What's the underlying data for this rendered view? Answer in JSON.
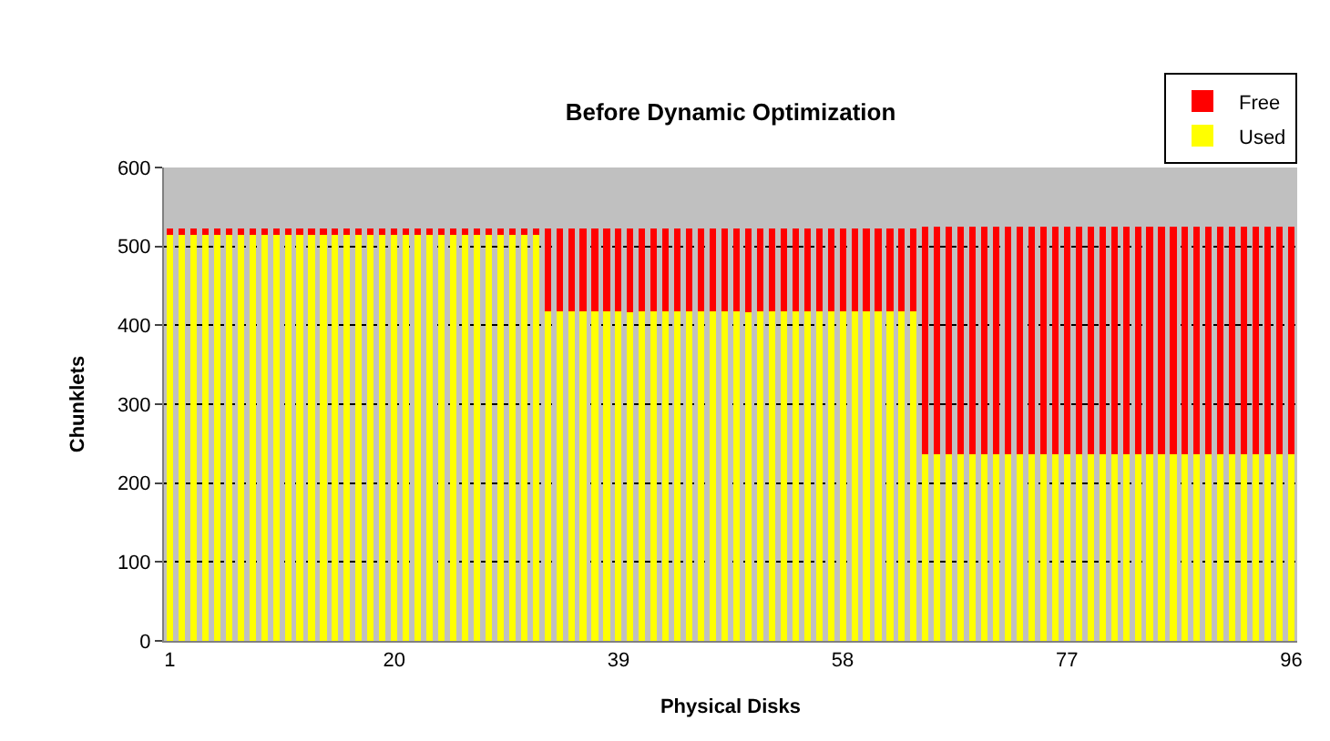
{
  "chart_data": {
    "type": "bar",
    "title": "Before Dynamic Optimization",
    "xlabel": "Physical Disks",
    "ylabel": "Chunklets",
    "categories": [
      "1",
      null,
      null,
      null,
      null,
      null,
      null,
      null,
      null,
      null,
      null,
      null,
      null,
      null,
      null,
      null,
      null,
      null,
      null,
      "20",
      null,
      null,
      null,
      null,
      null,
      null,
      null,
      null,
      null,
      null,
      null,
      null,
      null,
      null,
      null,
      null,
      null,
      null,
      "39",
      null,
      null,
      null,
      null,
      null,
      null,
      null,
      null,
      null,
      null,
      null,
      null,
      null,
      null,
      null,
      null,
      null,
      null,
      "58",
      null,
      null,
      null,
      null,
      null,
      null,
      null,
      null,
      null,
      null,
      null,
      null,
      null,
      null,
      null,
      null,
      null,
      null,
      "77",
      null,
      null,
      null,
      null,
      null,
      null,
      null,
      null,
      null,
      null,
      null,
      null,
      null,
      null,
      null,
      null,
      null,
      null,
      "96"
    ],
    "series": [
      {
        "name": "Used",
        "color": "#ffff00",
        "values": [
          515,
          515,
          515,
          515,
          515,
          515,
          515,
          515,
          515,
          515,
          515,
          515,
          515,
          515,
          515,
          515,
          515,
          515,
          515,
          515,
          515,
          515,
          515,
          515,
          515,
          515,
          515,
          515,
          515,
          515,
          515,
          515,
          418,
          418,
          418,
          418,
          418,
          418,
          418,
          416,
          418,
          418,
          418,
          418,
          418,
          418,
          418,
          418,
          418,
          416,
          418,
          418,
          418,
          418,
          418,
          418,
          418,
          418,
          418,
          418,
          418,
          418,
          418,
          418,
          237,
          237,
          237,
          237,
          237,
          237,
          237,
          237,
          237,
          237,
          237,
          237,
          237,
          237,
          237,
          237,
          237,
          237,
          237,
          237,
          237,
          237,
          237,
          237,
          237,
          237,
          237,
          237,
          237,
          237,
          237,
          237
        ]
      },
      {
        "name": "Free",
        "color": "#ff0000",
        "values": [
          8,
          8,
          8,
          8,
          8,
          8,
          8,
          8,
          8,
          8,
          8,
          8,
          8,
          8,
          8,
          8,
          8,
          8,
          8,
          8,
          8,
          8,
          8,
          8,
          8,
          8,
          8,
          8,
          8,
          8,
          8,
          8,
          105,
          105,
          105,
          105,
          105,
          105,
          105,
          107,
          105,
          105,
          105,
          105,
          105,
          105,
          105,
          105,
          105,
          107,
          105,
          105,
          105,
          105,
          105,
          105,
          105,
          105,
          105,
          105,
          105,
          105,
          105,
          105,
          288,
          288,
          288,
          288,
          288,
          288,
          288,
          288,
          288,
          288,
          288,
          288,
          288,
          288,
          288,
          288,
          288,
          288,
          288,
          288,
          288,
          288,
          288,
          288,
          288,
          288,
          288,
          288,
          288,
          288,
          288,
          288
        ]
      }
    ],
    "stacked": true,
    "ylim": [
      0,
      600
    ],
    "yticks": [
      0,
      100,
      200,
      300,
      400,
      500,
      600
    ],
    "grid": "y",
    "legend": "top right"
  }
}
